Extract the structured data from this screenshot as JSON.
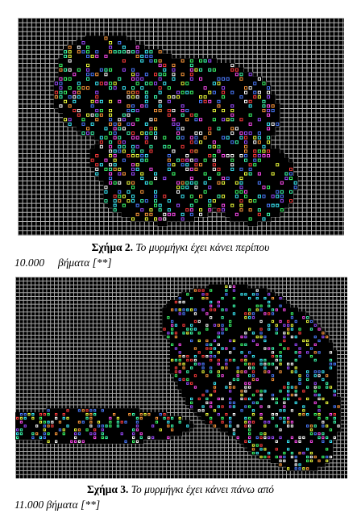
{
  "figures": [
    {
      "caption_label": "Σχήμα 2.",
      "caption_text": "Το μυρμήγκι έχει κάνει περίπου",
      "caption_line2_number": "10.000",
      "caption_line2_text": "βήματα [**]",
      "colors": {
        "background": "#000000",
        "grid": "#b4b4b4",
        "visited": "#000000"
      }
    },
    {
      "caption_label": "Σχήμα 3.",
      "caption_text": "Το μυρμήγκι έχει κάνει πάνω από",
      "caption_line2_number": "11.000",
      "caption_line2_text": "βήματα [**]",
      "colors": {
        "background": "#000000",
        "grid": "#a8a8a8",
        "visited": "#000000"
      }
    }
  ],
  "palette": [
    "#ff3b3b",
    "#3bff6a",
    "#4a7bff",
    "#ff4af0",
    "#3bf0ff",
    "#f0ff3b",
    "#ffffff",
    "#ff9a3b",
    "#9a4aff",
    "#3bffb0"
  ]
}
